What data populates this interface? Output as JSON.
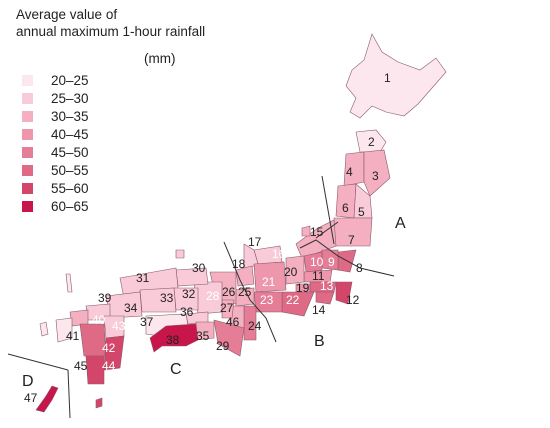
{
  "legend": {
    "title_line1": "Average value of",
    "title_line2": "annual maximum 1-hour rainfall",
    "unit": "(mm)",
    "items": [
      {
        "label": "20–25",
        "color": "#fce7ee"
      },
      {
        "label": "25–30",
        "color": "#f9cbd8"
      },
      {
        "label": "30–35",
        "color": "#f4b0c1"
      },
      {
        "label": "40–45",
        "color": "#ee97ac"
      },
      {
        "label": "45–50",
        "color": "#e67d96"
      },
      {
        "label": "50–55",
        "color": "#df6a86"
      },
      {
        "label": "55–60",
        "color": "#d4456a"
      },
      {
        "label": "60–65",
        "color": "#c8154a"
      }
    ]
  },
  "regions": {
    "A": "A",
    "B": "B",
    "C": "C",
    "D": "D"
  },
  "prefecture_numbers": [
    "1",
    "2",
    "3",
    "4",
    "5",
    "6",
    "7",
    "8",
    "9",
    "10",
    "11",
    "12",
    "13",
    "14",
    "15",
    "16",
    "17",
    "18",
    "19",
    "20",
    "21",
    "22",
    "23",
    "24",
    "25",
    "26",
    "27",
    "28",
    "29",
    "30",
    "31",
    "32",
    "33",
    "34",
    "35",
    "36",
    "37",
    "38",
    "39",
    "40",
    "41",
    "42",
    "43",
    "44",
    "45",
    "46",
    "47"
  ]
}
